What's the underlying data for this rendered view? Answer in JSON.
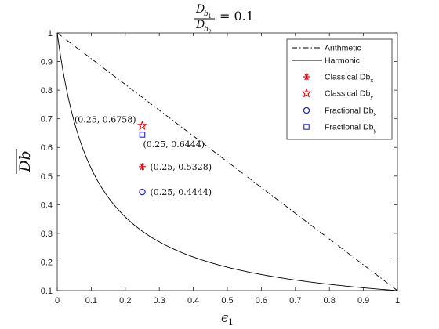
{
  "chart_data": {
    "type": "line",
    "title": {
      "d1_base": "D",
      "d1_sub": "b",
      "d1_subsub": "1",
      "d2_base": "D",
      "d2_sub": "b",
      "d2_subsub": "2",
      "rhs": "= 0.1"
    },
    "xlabel": {
      "base": "ϵ",
      "sub": "1"
    },
    "ylabel": {
      "base": "Db"
    },
    "xlim": [
      0,
      1
    ],
    "ylim": [
      0.1,
      1
    ],
    "xticks": [
      "0",
      "0.1",
      "0.2",
      "0.3",
      "0.4",
      "0.5",
      "0.6",
      "0.7",
      "0.8",
      "0.9",
      "1"
    ],
    "xtick_values": [
      0,
      0.1,
      0.2,
      0.3,
      0.4,
      0.5,
      0.6,
      0.7,
      0.8,
      0.9,
      1
    ],
    "yticks": [
      "0.1",
      "0.2",
      "0.3",
      "0.4",
      "0.5",
      "0.6",
      "0.7",
      "0.8",
      "0.9",
      "1"
    ],
    "ytick_values": [
      0.1,
      0.2,
      0.3,
      0.4,
      0.5,
      0.6,
      0.7,
      0.8,
      0.9,
      1
    ],
    "ratio": 0.1,
    "grid": false,
    "legend_position": "top-right",
    "series": [
      {
        "name": "Arithmetic",
        "kind": "line",
        "style": "dashdot",
        "color": "#000000",
        "x": [
          0,
          1
        ],
        "y": [
          1,
          0.1
        ]
      },
      {
        "name": "Harmonic",
        "kind": "line",
        "style": "solid",
        "color": "#000000",
        "formula": "harmonic"
      },
      {
        "name": "Classical Db",
        "name_sub": "x",
        "kind": "marker",
        "marker": "asterisk",
        "color": "#e8000b",
        "x": 0.25,
        "y": 0.5328
      },
      {
        "name": "Classical Db",
        "name_sub": "y",
        "kind": "marker",
        "marker": "star",
        "color": "#e8000b",
        "x": 0.25,
        "y": 0.6758
      },
      {
        "name": "Fractional Db",
        "name_sub": "x",
        "kind": "marker",
        "marker": "circle",
        "color": "#1f1fe0",
        "x": 0.25,
        "y": 0.4444
      },
      {
        "name": "Fractional Db",
        "name_sub": "y",
        "kind": "marker",
        "marker": "square",
        "color": "#1f1fe0",
        "x": 0.25,
        "y": 0.6444
      }
    ],
    "annotations": [
      {
        "text": "(0.25, 0.6758)",
        "x": 0.25,
        "y": 0.6758,
        "anchor": "left"
      },
      {
        "text": "(0.25, 0.6444)",
        "x": 0.25,
        "y": 0.6444,
        "anchor": "below"
      },
      {
        "text": "(0.25, 0.5328)",
        "x": 0.25,
        "y": 0.5328,
        "anchor": "right"
      },
      {
        "text": "(0.25, 0.4444)",
        "x": 0.25,
        "y": 0.4444,
        "anchor": "right"
      }
    ]
  }
}
